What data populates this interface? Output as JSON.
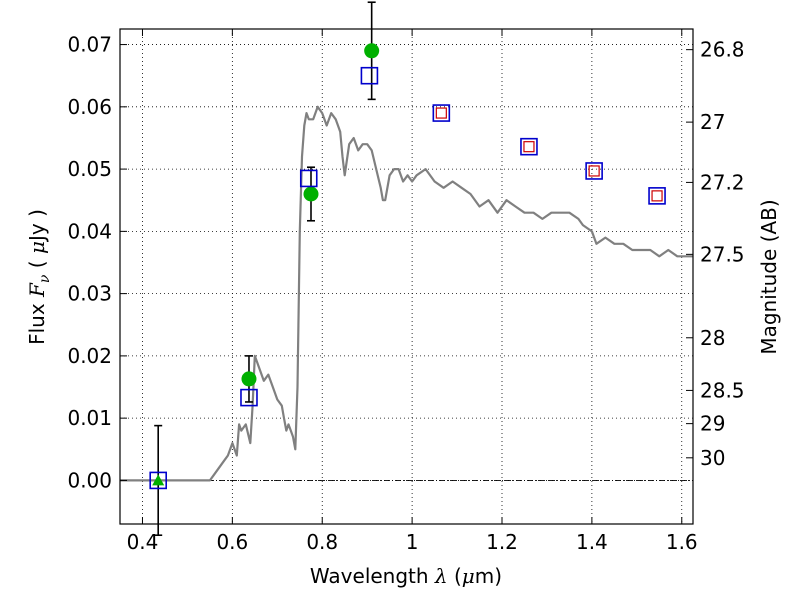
{
  "chart_data": {
    "type": "scatter",
    "xlabel_parts": [
      "Wavelength  ",
      "λ",
      " (",
      "μ",
      "m)"
    ],
    "ylabel_parts": [
      "Flux  ",
      "F",
      "ν",
      "  ( ",
      "μ",
      "Jy )"
    ],
    "y2label": "Magnitude (AB)",
    "xlim": [
      0.35,
      1.625
    ],
    "ylim": [
      -0.007,
      0.0725
    ],
    "grid": true,
    "x_ticks": [
      0.4,
      0.6,
      0.8,
      1.0,
      1.2,
      1.4,
      1.6
    ],
    "x_tick_labels": [
      "0.4",
      "0.6",
      "0.8",
      "1",
      "1.2",
      "1.4",
      "1.6"
    ],
    "y_ticks": [
      0.0,
      0.01,
      0.02,
      0.03,
      0.04,
      0.05,
      0.06,
      0.07
    ],
    "y_tick_labels": [
      "0.00",
      "0.01",
      "0.02",
      "0.03",
      "0.04",
      "0.05",
      "0.06",
      "0.07"
    ],
    "mag_ticks": [
      26.8,
      27,
      27.2,
      27.5,
      28,
      28.5,
      29,
      30
    ],
    "mag_tick_labels": [
      "26.8",
      "27",
      "27.2",
      "27.5",
      "28",
      "28.5",
      "29",
      "30"
    ],
    "colors": {
      "model": "#808080",
      "observed": "#00b000",
      "model_box": "#0000cc",
      "model_box_inner": "#cc0000",
      "errorbar": "#000000"
    },
    "model_spectrum": {
      "x": [
        0.35,
        0.55,
        0.56,
        0.58,
        0.59,
        0.6,
        0.61,
        0.615,
        0.62,
        0.63,
        0.64,
        0.645,
        0.65,
        0.655,
        0.66,
        0.67,
        0.68,
        0.69,
        0.7,
        0.71,
        0.715,
        0.72,
        0.725,
        0.73,
        0.735,
        0.74,
        0.745,
        0.75,
        0.755,
        0.76,
        0.765,
        0.77,
        0.78,
        0.79,
        0.8,
        0.81,
        0.82,
        0.83,
        0.84,
        0.845,
        0.85,
        0.86,
        0.87,
        0.88,
        0.89,
        0.9,
        0.91,
        0.92,
        0.93,
        0.935,
        0.94,
        0.95,
        0.96,
        0.97,
        0.98,
        0.99,
        1.0,
        1.01,
        1.03,
        1.05,
        1.07,
        1.09,
        1.11,
        1.13,
        1.15,
        1.17,
        1.19,
        1.21,
        1.23,
        1.25,
        1.27,
        1.29,
        1.31,
        1.33,
        1.35,
        1.37,
        1.38,
        1.4,
        1.41,
        1.43,
        1.45,
        1.47,
        1.49,
        1.51,
        1.53,
        1.55,
        1.57,
        1.59,
        1.61,
        1.625
      ],
      "y": [
        0.0,
        0.0,
        0.001,
        0.003,
        0.004,
        0.006,
        0.004,
        0.009,
        0.008,
        0.009,
        0.006,
        0.012,
        0.02,
        0.019,
        0.018,
        0.016,
        0.017,
        0.015,
        0.013,
        0.012,
        0.01,
        0.008,
        0.009,
        0.008,
        0.007,
        0.005,
        0.015,
        0.04,
        0.052,
        0.057,
        0.059,
        0.058,
        0.058,
        0.06,
        0.059,
        0.057,
        0.059,
        0.058,
        0.056,
        0.052,
        0.049,
        0.054,
        0.055,
        0.053,
        0.054,
        0.054,
        0.053,
        0.05,
        0.047,
        0.045,
        0.045,
        0.049,
        0.05,
        0.05,
        0.048,
        0.049,
        0.048,
        0.049,
        0.05,
        0.048,
        0.047,
        0.048,
        0.047,
        0.046,
        0.044,
        0.045,
        0.043,
        0.045,
        0.044,
        0.043,
        0.043,
        0.042,
        0.043,
        0.043,
        0.043,
        0.042,
        0.041,
        0.04,
        0.038,
        0.039,
        0.038,
        0.038,
        0.037,
        0.037,
        0.037,
        0.036,
        0.037,
        0.036,
        0.036,
        0.036
      ]
    },
    "observed_points": [
      {
        "x": 0.435,
        "y": 0.0,
        "yerr": 0.0088,
        "marker": "triangle"
      },
      {
        "x": 0.637,
        "y": 0.0163,
        "yerr": 0.0037,
        "marker": "circle"
      },
      {
        "x": 0.775,
        "y": 0.046,
        "yerr": 0.0043,
        "marker": "circle"
      },
      {
        "x": 0.91,
        "y": 0.069,
        "yerr": 0.0078,
        "marker": "circle"
      }
    ],
    "model_points": [
      {
        "x": 0.435,
        "y": 0.0,
        "inner": false
      },
      {
        "x": 0.637,
        "y": 0.0133,
        "inner": false
      },
      {
        "x": 0.77,
        "y": 0.0485,
        "inner": false
      },
      {
        "x": 0.905,
        "y": 0.065,
        "inner": false
      },
      {
        "x": 1.065,
        "y": 0.059,
        "inner": true
      },
      {
        "x": 1.26,
        "y": 0.0536,
        "inner": true
      },
      {
        "x": 1.405,
        "y": 0.0497,
        "inner": true
      },
      {
        "x": 1.545,
        "y": 0.0457,
        "inner": true
      }
    ]
  }
}
